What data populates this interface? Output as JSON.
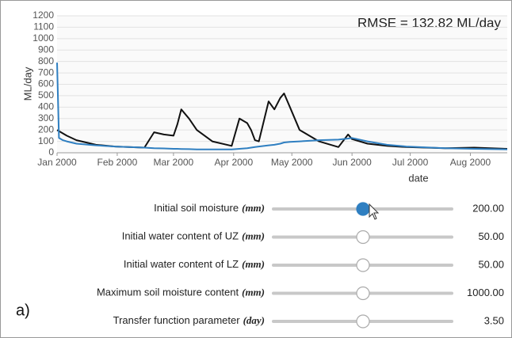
{
  "chart_data": {
    "type": "line",
    "annotation": "RMSE = 132.82 ML/day",
    "ylabel": "ML/day",
    "xlabel": "date",
    "x": [
      0,
      1,
      3,
      5,
      10,
      20,
      30,
      45,
      50,
      55,
      60,
      62,
      64,
      68,
      72,
      80,
      90,
      94,
      98,
      100,
      102,
      104,
      109,
      112,
      115,
      117,
      120,
      125,
      135,
      145,
      150,
      152,
      160,
      170,
      180,
      200,
      215,
      232
    ],
    "series": [
      {
        "color": "#111111",
        "values": [
          200,
          190,
          170,
          150,
          110,
          70,
          55,
          45,
          180,
          160,
          150,
          250,
          380,
          300,
          200,
          100,
          60,
          300,
          260,
          200,
          110,
          100,
          450,
          380,
          480,
          520,
          400,
          200,
          100,
          50,
          160,
          120,
          80,
          60,
          50,
          40,
          45,
          35
        ]
      },
      {
        "color": "#2f7fc1",
        "values": [
          790,
          130,
          110,
          100,
          80,
          65,
          55,
          45,
          40,
          38,
          35,
          35,
          33,
          32,
          30,
          30,
          30,
          35,
          40,
          45,
          50,
          55,
          65,
          70,
          80,
          90,
          95,
          100,
          110,
          115,
          125,
          130,
          100,
          70,
          55,
          40,
          35,
          30
        ]
      }
    ],
    "xlim": [
      0,
      232
    ],
    "xticks": [
      {
        "value": 0,
        "label": "Jan 2000"
      },
      {
        "value": 31,
        "label": "Feb 2000"
      },
      {
        "value": 60,
        "label": "Mar 2000"
      },
      {
        "value": 91,
        "label": "Apr 2000"
      },
      {
        "value": 121,
        "label": "May 2000"
      },
      {
        "value": 152,
        "label": "Jun 2000"
      },
      {
        "value": 182,
        "label": "Jul 2000"
      },
      {
        "value": 213,
        "label": "Aug 2000"
      }
    ],
    "ylim": [
      0,
      1200
    ],
    "yticks": [
      0,
      100,
      200,
      300,
      400,
      500,
      600,
      700,
      800,
      900,
      1000,
      1100,
      1200
    ],
    "grid": true
  },
  "panel_label": "a)",
  "controls": [
    {
      "label": "Initial soil moisture",
      "unit": "(mm)",
      "value": 200,
      "value_label": "200.00"
    },
    {
      "label": "Initial water content of UZ",
      "unit": "(mm)",
      "value": 50,
      "value_label": "50.00"
    },
    {
      "label": "Initial water content of LZ",
      "unit": "(mm)",
      "value": 50,
      "value_label": "50.00"
    },
    {
      "label": "Maximum soil moisture content",
      "unit": "(mm)",
      "value": 1000,
      "value_label": "1000.00"
    },
    {
      "label": "Transfer function parameter",
      "unit": "(day)",
      "value": 3.5,
      "value_label": "3.50"
    }
  ]
}
